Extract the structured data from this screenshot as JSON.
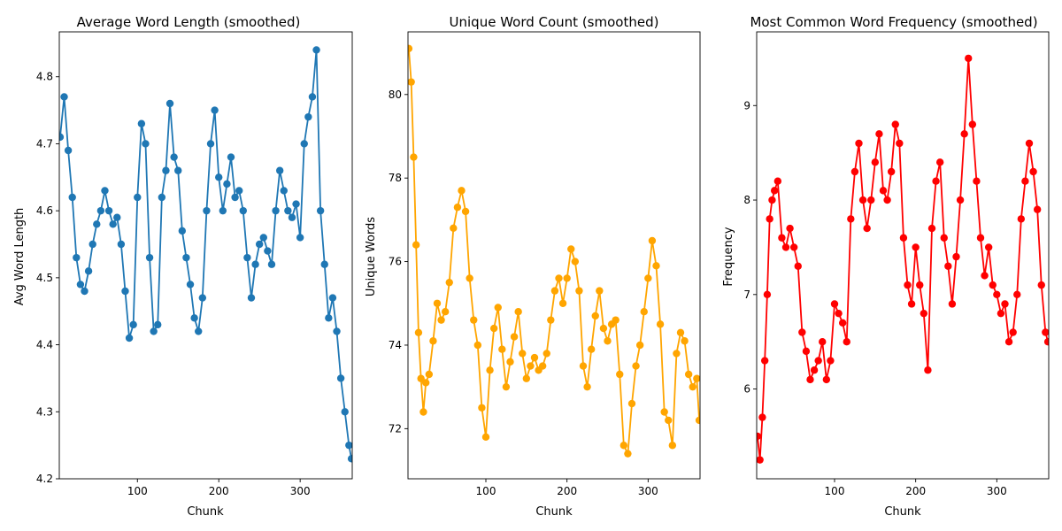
{
  "chart_data": [
    {
      "type": "line",
      "title": "Average Word Length (smoothed)",
      "xlabel": "Chunk",
      "ylabel": "Avg Word Length",
      "xlim": [
        4,
        364
      ],
      "ylim": [
        4.2,
        4.867
      ],
      "xticks": [
        100,
        200,
        300
      ],
      "yticks": [
        4.2,
        4.3,
        4.4,
        4.5,
        4.6,
        4.7,
        4.8
      ],
      "ytick_labels": [
        "4.2",
        "4.3",
        "4.4",
        "4.5",
        "4.6",
        "4.7",
        "4.8"
      ],
      "color": "#1f77b4",
      "series": [
        {
          "x": [
            5,
            10,
            15,
            20,
            25,
            30,
            35,
            40,
            45,
            50,
            55,
            60,
            65,
            70,
            75,
            80,
            85,
            90,
            95,
            100,
            105,
            110,
            115,
            120,
            125,
            130,
            135,
            140,
            145,
            150,
            155,
            160,
            165,
            170,
            175,
            180,
            185,
            190,
            195,
            200,
            205,
            210,
            215,
            220,
            225,
            230,
            235,
            240,
            245,
            250,
            255,
            260,
            265,
            270,
            275,
            280,
            285,
            290,
            295,
            300,
            305,
            310,
            315,
            320,
            325,
            330,
            335,
            340,
            345,
            350,
            355,
            360,
            363
          ],
          "values": [
            4.71,
            4.77,
            4.69,
            4.62,
            4.53,
            4.49,
            4.48,
            4.51,
            4.55,
            4.58,
            4.6,
            4.63,
            4.6,
            4.58,
            4.59,
            4.55,
            4.48,
            4.41,
            4.43,
            4.62,
            4.73,
            4.7,
            4.53,
            4.42,
            4.43,
            4.62,
            4.66,
            4.76,
            4.68,
            4.66,
            4.57,
            4.53,
            4.49,
            4.44,
            4.42,
            4.47,
            4.6,
            4.7,
            4.75,
            4.65,
            4.6,
            4.64,
            4.68,
            4.62,
            4.63,
            4.6,
            4.53,
            4.47,
            4.52,
            4.55,
            4.56,
            4.54,
            4.52,
            4.6,
            4.66,
            4.63,
            4.6,
            4.59,
            4.61,
            4.56,
            4.7,
            4.74,
            4.77,
            4.84,
            4.6,
            4.52,
            4.44,
            4.47,
            4.42,
            4.35,
            4.3,
            4.25,
            4.23
          ]
        }
      ]
    },
    {
      "type": "line",
      "title": "Unique Word Count (smoothed)",
      "xlabel": "Chunk",
      "ylabel": "Unique Words",
      "xlim": [
        4,
        364
      ],
      "ylim": [
        70.8,
        81.5
      ],
      "xticks": [
        100,
        200,
        300
      ],
      "yticks": [
        72,
        74,
        76,
        78,
        80
      ],
      "ytick_labels": [
        "72",
        "74",
        "76",
        "78",
        "80"
      ],
      "color": "#ffa500",
      "series": [
        {
          "x": [
            5,
            8,
            11,
            14,
            17,
            20,
            23,
            26,
            30,
            35,
            40,
            45,
            50,
            55,
            60,
            65,
            70,
            75,
            80,
            85,
            90,
            95,
            100,
            105,
            110,
            115,
            120,
            125,
            130,
            135,
            140,
            145,
            150,
            155,
            160,
            165,
            170,
            175,
            180,
            185,
            190,
            195,
            200,
            205,
            210,
            215,
            220,
            225,
            230,
            235,
            240,
            245,
            250,
            255,
            260,
            265,
            270,
            275,
            280,
            285,
            290,
            295,
            300,
            305,
            310,
            315,
            320,
            325,
            330,
            335,
            340,
            345,
            350,
            355,
            360,
            363
          ],
          "values": [
            81.1,
            80.3,
            78.5,
            76.4,
            74.3,
            73.2,
            72.4,
            73.1,
            73.3,
            74.1,
            75.0,
            74.6,
            74.8,
            75.5,
            76.8,
            77.3,
            77.7,
            77.2,
            75.6,
            74.6,
            74.0,
            72.5,
            71.8,
            73.4,
            74.4,
            74.9,
            73.9,
            73.0,
            73.6,
            74.2,
            74.8,
            73.8,
            73.2,
            73.5,
            73.7,
            73.4,
            73.5,
            73.8,
            74.6,
            75.3,
            75.6,
            75.0,
            75.6,
            76.3,
            76.0,
            75.3,
            73.5,
            73.0,
            73.9,
            74.7,
            75.3,
            74.4,
            74.1,
            74.5,
            74.6,
            73.3,
            71.6,
            71.4,
            72.6,
            73.5,
            74.0,
            74.8,
            75.6,
            76.5,
            75.9,
            74.5,
            72.4,
            72.2,
            71.6,
            73.8,
            74.3,
            74.1,
            73.3,
            73.0,
            73.2,
            72.2
          ]
        }
      ]
    },
    {
      "type": "line",
      "title": "Most Common Word Frequency (smoothed)",
      "xlabel": "Chunk",
      "ylabel": "Frequency",
      "xlim": [
        4,
        364
      ],
      "ylim": [
        5.05,
        9.78
      ],
      "xticks": [
        100,
        200,
        300
      ],
      "yticks": [
        6,
        7,
        8,
        9
      ],
      "ytick_labels": [
        "6",
        "7",
        "8",
        "9"
      ],
      "color": "#ff0000",
      "series": [
        {
          "x": [
            5,
            8,
            11,
            14,
            17,
            20,
            23,
            26,
            30,
            35,
            40,
            45,
            50,
            55,
            60,
            65,
            70,
            75,
            80,
            85,
            90,
            95,
            100,
            105,
            110,
            115,
            120,
            125,
            130,
            135,
            140,
            145,
            150,
            155,
            160,
            165,
            170,
            175,
            180,
            185,
            190,
            195,
            200,
            205,
            210,
            215,
            220,
            225,
            230,
            235,
            240,
            245,
            250,
            255,
            260,
            265,
            270,
            275,
            280,
            285,
            290,
            295,
            300,
            305,
            310,
            315,
            320,
            325,
            330,
            335,
            340,
            345,
            350,
            355,
            360,
            363
          ],
          "values": [
            5.5,
            5.25,
            5.7,
            6.3,
            7.0,
            7.8,
            8.0,
            8.1,
            8.2,
            7.6,
            7.5,
            7.7,
            7.5,
            7.3,
            6.6,
            6.4,
            6.1,
            6.2,
            6.3,
            6.5,
            6.1,
            6.3,
            6.9,
            6.8,
            6.7,
            6.5,
            7.8,
            8.3,
            8.6,
            8.0,
            7.7,
            8.0,
            8.4,
            8.7,
            8.1,
            8.0,
            8.3,
            8.8,
            8.6,
            7.6,
            7.1,
            6.9,
            7.5,
            7.1,
            6.8,
            6.2,
            7.7,
            8.2,
            8.4,
            7.6,
            7.3,
            6.9,
            7.4,
            8.0,
            8.7,
            9.5,
            8.8,
            8.2,
            7.6,
            7.2,
            7.5,
            7.1,
            7.0,
            6.8,
            6.9,
            6.5,
            6.6,
            7.0,
            7.8,
            8.2,
            8.6,
            8.3,
            7.9,
            7.1,
            6.6,
            6.5
          ]
        }
      ]
    }
  ]
}
